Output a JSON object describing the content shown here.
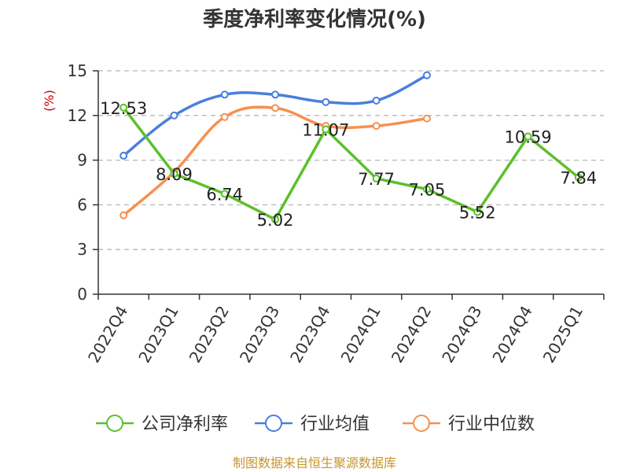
{
  "chart_data": {
    "type": "line",
    "title": "季度净利率变化情况(%)",
    "unit_label": "(%)",
    "categories": [
      "2022Q4",
      "2023Q1",
      "2023Q2",
      "2023Q3",
      "2023Q4",
      "2024Q1",
      "2024Q2",
      "2024Q3",
      "2024Q4",
      "2025Q1"
    ],
    "ylim": [
      0,
      15
    ],
    "yticks": [
      "0",
      "3",
      "6",
      "9",
      "12",
      "15"
    ],
    "grid": true,
    "legend_position": "bottom",
    "series": [
      {
        "name": "公司净利率",
        "color": "#5cc02b",
        "values": [
          12.53,
          8.09,
          6.74,
          5.02,
          11.07,
          7.77,
          7.05,
          5.52,
          10.59,
          7.84
        ],
        "labels": [
          "12.53",
          "8.09",
          "6.74",
          "5.02",
          "11.07",
          "7.77",
          "7.05",
          "5.52",
          "10.59",
          "7.84"
        ]
      },
      {
        "name": "行业均值",
        "color": "#4a7fdc",
        "values": [
          9.3,
          12.0,
          13.4,
          13.4,
          12.9,
          13.0,
          14.7,
          null,
          null,
          null
        ]
      },
      {
        "name": "行业中位数",
        "color": "#f79050",
        "values": [
          5.3,
          8.2,
          11.9,
          12.5,
          11.3,
          11.3,
          11.8,
          null,
          null,
          null
        ]
      }
    ]
  },
  "source": "制图数据来自恒生聚源数据库"
}
